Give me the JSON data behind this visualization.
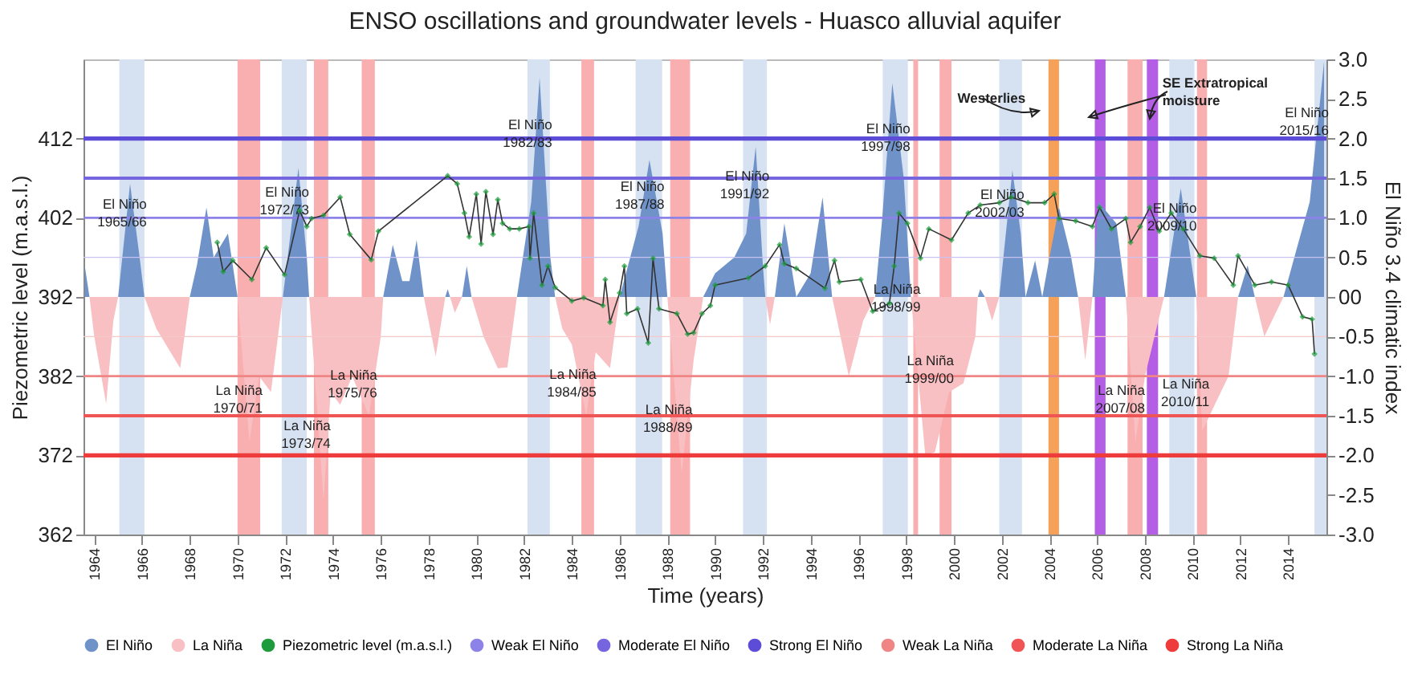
{
  "chart_data": {
    "type": "area",
    "title": "ENSO oscillations and groundwater levels - Huasco alluvial aquifer",
    "xlabel": "Time (years)",
    "ylabel": "Piezometric level  (m.a.s.l.)",
    "y2label": "El Niño 3.4 climatic index",
    "xlim": [
      1963.55,
      2015.6
    ],
    "xticks": [
      1964,
      1966,
      1968,
      1970,
      1972,
      1974,
      1976,
      1978,
      1980,
      1982,
      1984,
      1986,
      1988,
      1990,
      1992,
      1994,
      1996,
      1998,
      2000,
      2002,
      2004,
      2006,
      2008,
      2010,
      2012,
      2014
    ],
    "ylim": [
      362,
      422
    ],
    "yticks": [
      362,
      372,
      382,
      392,
      402,
      412
    ],
    "y2lim": [
      -3,
      3
    ],
    "y2ticks": [
      {
        "value": -3,
        "label": "-3.0"
      },
      {
        "value": -2.5,
        "label": "-2.5"
      },
      {
        "value": -2,
        "label": "-2.0"
      },
      {
        "value": -1.5,
        "label": "-1.5"
      },
      {
        "value": -1,
        "label": "-1.0"
      },
      {
        "value": -0.5,
        "label": "-0.5"
      },
      {
        "value": 0,
        "label": "00"
      },
      {
        "value": 0.5,
        "label": "0.5"
      },
      {
        "value": 1,
        "label": "1.0"
      },
      {
        "value": 1.5,
        "label": "1.5"
      },
      {
        "value": 2,
        "label": "2.0"
      },
      {
        "value": 2.5,
        "label": "2.5"
      },
      {
        "value": 3,
        "label": "3.0"
      }
    ],
    "legend": "bottom",
    "grid": false,
    "x": [
      1963.6,
      1963.8,
      1964.0,
      1964.5,
      1964.8,
      1965.0,
      1965.5,
      1965.9,
      1966.1,
      1966.6,
      1967.0,
      1967.6,
      1968.0,
      1968.3,
      1968.7,
      1969.0,
      1969.6,
      1970.0,
      1970.5,
      1970.9,
      1971.4,
      1971.9,
      1972.3,
      1972.55,
      1972.9,
      1973.0,
      1973.6,
      1973.9,
      1974.3,
      1974.8,
      1975.5,
      1976.0,
      1976.1,
      1976.5,
      1976.9,
      1977.2,
      1977.5,
      1977.8,
      1978.3,
      1978.7,
      1978.8,
      1978.9,
      1979.1,
      1979.4,
      1979.6,
      1979.8,
      1980.3,
      1980.9,
      1981.3,
      1981.7,
      1982.3,
      1982.65,
      1983.1,
      1983.3,
      1983.6,
      1984.0,
      1984.6,
      1985.0,
      1985.6,
      1986.0,
      1986.8,
      1987.25,
      1987.8,
      1988.0,
      1988.6,
      1989.1,
      1989.5,
      1990.0,
      1990.8,
      1991.3,
      1991.7,
      1992.0,
      1992.1,
      1992.3,
      1992.5,
      1992.9,
      1993.4,
      1994.0,
      1994.5,
      1994.9,
      1995.6,
      1996.2,
      1996.7,
      1997.0,
      1997.42,
      1997.9,
      1998.2,
      1998.8,
      1999.2,
      1999.8,
      2000.4,
      2000.9,
      2001.0,
      2001.1,
      2001.3,
      2001.6,
      2001.9,
      2002.45,
      2002.8,
      2003.0,
      2003.4,
      2003.7,
      2004.0,
      2004.4,
      2004.9,
      2005.2,
      2005.5,
      2005.8,
      2006.05,
      2006.8,
      2007.2,
      2007.6,
      2008.0,
      2008.8,
      2009.5,
      2010.15,
      2010.4,
      2011.5,
      2011.9,
      2012.3,
      2012.6,
      2013.0,
      2013.8,
      2014.4,
      2014.9,
      2015.5
    ],
    "series": [
      {
        "name": "El Niño",
        "axis": "y2",
        "color": "#6f93c9",
        "values": [
          0.4,
          0,
          0,
          0,
          0,
          0,
          1.43,
          0.5,
          0,
          0,
          0,
          0,
          0,
          0.4,
          1.13,
          0.5,
          0.8,
          0,
          0,
          0,
          0,
          0,
          1,
          1.63,
          0.5,
          0,
          0,
          0,
          0,
          0,
          0,
          0,
          0,
          0.66,
          0.2,
          0.2,
          0.72,
          0,
          0,
          0,
          0.1,
          0,
          0,
          0,
          0.39,
          0,
          0,
          0,
          0,
          0,
          1.2,
          2.77,
          0.5,
          0,
          0,
          0,
          0,
          0,
          0,
          0,
          0.9,
          1.73,
          0.8,
          0,
          0,
          0,
          0,
          0.3,
          0.5,
          0.8,
          1.9,
          0.4,
          0,
          0,
          0,
          0.93,
          0,
          0.3,
          1.26,
          0,
          0,
          0,
          0,
          1,
          2.7,
          1.5,
          0,
          0,
          0,
          0,
          0,
          0,
          0,
          0.1,
          0,
          0,
          0,
          1.6,
          0.8,
          0,
          0.46,
          0,
          0.5,
          1.13,
          0.52,
          0,
          0,
          0,
          1.2,
          0.93,
          0,
          0,
          0,
          0,
          1.37,
          0,
          0,
          0,
          0,
          0.4,
          0,
          0,
          0,
          0.66,
          1.2,
          2.97
        ]
      },
      {
        "name": "La Niña",
        "axis": "y2",
        "color": "#f9c0c3",
        "values": [
          0,
          0,
          -0.5,
          -1.35,
          -0.3,
          0,
          0,
          0,
          0,
          -0.4,
          -0.6,
          -0.9,
          0,
          0,
          0,
          0,
          0,
          0,
          -1.83,
          -1,
          -1.2,
          0,
          0,
          0,
          0,
          0,
          -2.56,
          -1.2,
          -1.36,
          -1,
          -1.5,
          -0.5,
          0,
          0,
          0,
          0,
          0,
          0,
          -0.75,
          0,
          0,
          0,
          -0.2,
          0,
          0,
          0,
          -0.5,
          -0.9,
          -0.89,
          0,
          0,
          0,
          0,
          0,
          -0.4,
          -0.6,
          -1.49,
          -0.7,
          -0.9,
          0,
          0,
          0,
          0,
          0,
          -2.23,
          -0.8,
          0,
          0,
          0,
          0,
          0,
          0,
          0,
          -0.35,
          0,
          0,
          0,
          0,
          0,
          0,
          -1,
          -0.3,
          0,
          0,
          0,
          0,
          0,
          -2,
          -1.96,
          -1.2,
          -1.09,
          -0.5,
          0,
          0,
          0,
          -0.3,
          0,
          0,
          0,
          0,
          0,
          0,
          0,
          0,
          0,
          0,
          -0.8,
          0,
          0,
          0,
          0,
          -1.83,
          -1,
          0,
          0,
          0,
          -1.69,
          -1,
          0,
          0,
          0,
          -0.5,
          0,
          0,
          0,
          0
        ]
      },
      {
        "name": "Piezometric level (m.a.s.l.)",
        "type": "line",
        "marker": "diamond",
        "line_style": "solid",
        "color": "#1e9b3c",
        "x": [
          1969.15,
          1969.4,
          1969.8,
          1970.6,
          1971.2,
          1971.97,
          1972.6,
          1972.9,
          1973.1,
          1973.6,
          1974.3,
          1974.7,
          1975.6,
          1975.9,
          1978.8,
          1979.2,
          1979.5,
          1979.7,
          1980.0,
          1980.2,
          1980.4,
          1980.7,
          1980.9,
          1981.1,
          1981.4,
          1981.8,
          1982.2,
          1982.25,
          1982.4,
          1982.75,
          1983.0,
          1983.3,
          1984.0,
          1984.5,
          1985.3,
          1985.4,
          1985.6,
          1986.0,
          1986.2,
          1986.3,
          1986.75,
          1987.2,
          1987.4,
          1987.65,
          1988.4,
          1988.85,
          1989.1,
          1989.45,
          1989.8,
          1990.0,
          1991.4,
          1992.1,
          1992.7,
          1992.9,
          1993.4,
          1994.6,
          1995.0,
          1995.2,
          1996.1,
          1996.6,
          1997.3,
          1997.5,
          1997.7,
          1998.05,
          1998.6,
          1998.95,
          1999.9,
          2000.6,
          2001.1,
          2001.9,
          2002.4,
          2003.1,
          2003.8,
          2004.2,
          2004.4,
          2005.1,
          2005.8,
          2006.1,
          2006.6,
          2007.2,
          2007.4,
          2007.8,
          2008.2,
          2008.6,
          2009.1,
          2009.6,
          2010.3,
          2010.9,
          2011.7,
          2011.9,
          2012.6,
          2013.3,
          2014.0,
          2014.6,
          2015.0,
          2015.1
        ],
        "values": [
          398.9,
          395.2,
          396.6,
          394.2,
          398.2,
          394.8,
          402.9,
          400.9,
          401.9,
          402.3,
          404.6,
          399.9,
          396.7,
          400.3,
          407.3,
          406.3,
          402.6,
          399.6,
          405.0,
          398.7,
          405.3,
          399.9,
          404.3,
          401.3,
          400.6,
          400.6,
          400.9,
          396.9,
          402.6,
          393.5,
          395.9,
          393.2,
          391.5,
          391.9,
          390.9,
          394.2,
          388.8,
          392.5,
          395.9,
          389.9,
          390.5,
          386.2,
          396.9,
          390.5,
          389.9,
          387.3,
          387.5,
          389.9,
          390.9,
          393.5,
          394.4,
          395.9,
          398.6,
          396.2,
          395.6,
          393.1,
          396.6,
          393.9,
          394.2,
          390.2,
          391.2,
          395.9,
          402.6,
          401.3,
          396.9,
          400.6,
          399.2,
          402.6,
          403.6,
          403.9,
          404.6,
          403.9,
          403.9,
          405.0,
          401.9,
          401.6,
          400.9,
          403.3,
          400.6,
          401.9,
          398.9,
          400.9,
          403.3,
          400.3,
          402.6,
          400.6,
          397.2,
          396.9,
          393.5,
          397.2,
          393.5,
          393.9,
          393.5,
          389.5,
          389.2,
          384.8
        ]
      }
    ],
    "ref_lines": [
      {
        "axis": "y2",
        "value": 0.5,
        "color": "#c9c3f4"
      },
      {
        "axis": "y2",
        "value": 1,
        "label": "Weak El Niño",
        "color": "#8d82e8"
      },
      {
        "axis": "y2",
        "value": 1.5,
        "label": "Moderate El Niño",
        "color": "#7566e0"
      },
      {
        "axis": "y2",
        "value": 2,
        "label": "Strong El Niño",
        "color": "#5c4cd8"
      },
      {
        "axis": "y2",
        "value": -0.5,
        "color": "#f6c8c8"
      },
      {
        "axis": "y2",
        "value": -1,
        "label": "Weak La Niña",
        "color": "#ef8585"
      },
      {
        "axis": "y2",
        "value": -1.5,
        "label": "Moderate La Niña",
        "color": "#ef5555"
      },
      {
        "axis": "y2",
        "value": -2,
        "label": "Strong La Niña",
        "color": "#ee3b3b"
      }
    ],
    "bands": [
      {
        "axis": "x",
        "from": 1965.05,
        "to": 1966.1,
        "color": "#d6e1f1",
        "label": "El Niño\n1965/66"
      },
      {
        "axis": "x",
        "from": 1971.85,
        "to": 1972.9,
        "color": "#d6e1f1",
        "label": "El Niño\n1972/73"
      },
      {
        "axis": "x",
        "from": 1982.14,
        "to": 1983.08,
        "color": "#d6e1f1",
        "label": "El Niño\n1982/83"
      },
      {
        "axis": "x",
        "from": 1986.67,
        "to": 1987.78,
        "color": "#d6e1f1",
        "label": "El Niño\n1987/88"
      },
      {
        "axis": "x",
        "from": 1991.17,
        "to": 1992.17,
        "color": "#d6e1f1",
        "label": "El Niño\n1991/92"
      },
      {
        "axis": "x",
        "from": 1997.02,
        "to": 1998.07,
        "color": "#d6e1f1",
        "label": "El Niño\n1997/98"
      },
      {
        "axis": "x",
        "from": 2001.9,
        "to": 2002.85,
        "color": "#d6e1f1",
        "label": "El Niño\n2002/03"
      },
      {
        "axis": "x",
        "from": 2009.02,
        "to": 2010.07,
        "color": "#d6e1f1",
        "label": "El Niño\n2009/10"
      },
      {
        "axis": "x",
        "from": 2015.1,
        "to": 2015.6,
        "color": "#d6e1f1",
        "label": "El Niño\n2015/16"
      },
      {
        "axis": "x",
        "from": 1970.0,
        "to": 1970.95,
        "color": "#f9aeb0",
        "label": "La Niña\n1970/71"
      },
      {
        "axis": "x",
        "from": 1973.2,
        "to": 1973.8,
        "color": "#f9aeb0",
        "label": "La Niña\n1973/74"
      },
      {
        "axis": "x",
        "from": 1975.2,
        "to": 1975.75,
        "color": "#f9aeb0",
        "label": "La Niña\n1975/76"
      },
      {
        "axis": "x",
        "from": 1984.4,
        "to": 1984.93,
        "color": "#f9aeb0",
        "label": "La Niña\n1984/85"
      },
      {
        "axis": "x",
        "from": 1988.12,
        "to": 1988.95,
        "color": "#f9aeb0",
        "label": "La Niña\n1988/89"
      },
      {
        "axis": "x",
        "from": 1998.3,
        "to": 1998.5,
        "color": "#f9aeb0",
        "label": "La Niña\n1998/99"
      },
      {
        "axis": "x",
        "from": 1999.4,
        "to": 1999.9,
        "color": "#f9aeb0",
        "label": "La Niña\n1999/00"
      },
      {
        "axis": "x",
        "from": 2007.27,
        "to": 2007.9,
        "color": "#f9aeb0",
        "label": "La Niña\n2007/08"
      },
      {
        "axis": "x",
        "from": 2010.18,
        "to": 2010.6,
        "color": "#f9aeb0",
        "label": "La Niña\n2010/11"
      },
      {
        "axis": "x",
        "from": 2003.96,
        "to": 2004.4,
        "color": "#f5a15a"
      },
      {
        "axis": "x",
        "from": 2005.9,
        "to": 2006.35,
        "color": "#b45ee6"
      },
      {
        "axis": "x",
        "from": 2008.08,
        "to": 2008.55,
        "color": "#b45ee6"
      }
    ],
    "annotations": [
      {
        "text": "Westerlies",
        "x": 2000.15,
        "y": 417.9
      },
      {
        "text": "SE Extratropical\nmoisture",
        "x": 2008.73,
        "y": 419.9
      }
    ]
  }
}
